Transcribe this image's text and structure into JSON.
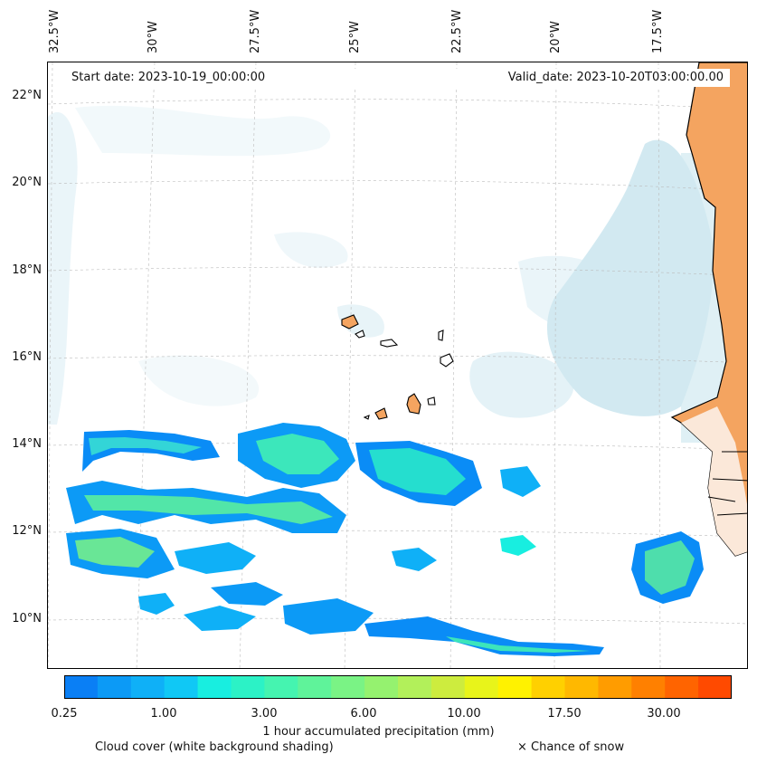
{
  "map": {
    "start_date_label": "Start date: 2023-10-19_00:00:00",
    "valid_date_label": "Valid_date: 2023-10-20T03:00:00.00",
    "longitude_labels": [
      "32.5°W",
      "30°W",
      "27.5°W",
      "25°W",
      "22.5°W",
      "20°W",
      "17.5°W"
    ],
    "latitude_labels": [
      "22°N",
      "20°N",
      "18°N",
      "16°N",
      "14°N",
      "12°N",
      "10°N"
    ],
    "region": "Cape Verde / West African coast",
    "land_color": "#f4a460",
    "cloud_color": "#add8e6",
    "coastline_color": "#000000"
  },
  "colorbar": {
    "label": "1 hour accumulated precipitation (mm)",
    "tick_labels": [
      "0.25",
      "1.00",
      "3.00",
      "6.00",
      "10.00",
      "17.50",
      "30.00"
    ],
    "colors": [
      "#0a7ff5",
      "#0c9af6",
      "#0fb0f7",
      "#10c8f5",
      "#18eee0",
      "#2cf2c6",
      "#45f4b0",
      "#5ff39a",
      "#7af385",
      "#95f26f",
      "#b2f05a",
      "#cdec3e",
      "#e8f41a",
      "#fff200",
      "#ffd000",
      "#ffb800",
      "#ff9c00",
      "#ff8000",
      "#ff6400",
      "#ff4a00"
    ]
  },
  "legend": {
    "cloud_cover_label": "Cloud cover (white background shading)",
    "snow_label": "× Chance of snow"
  }
}
